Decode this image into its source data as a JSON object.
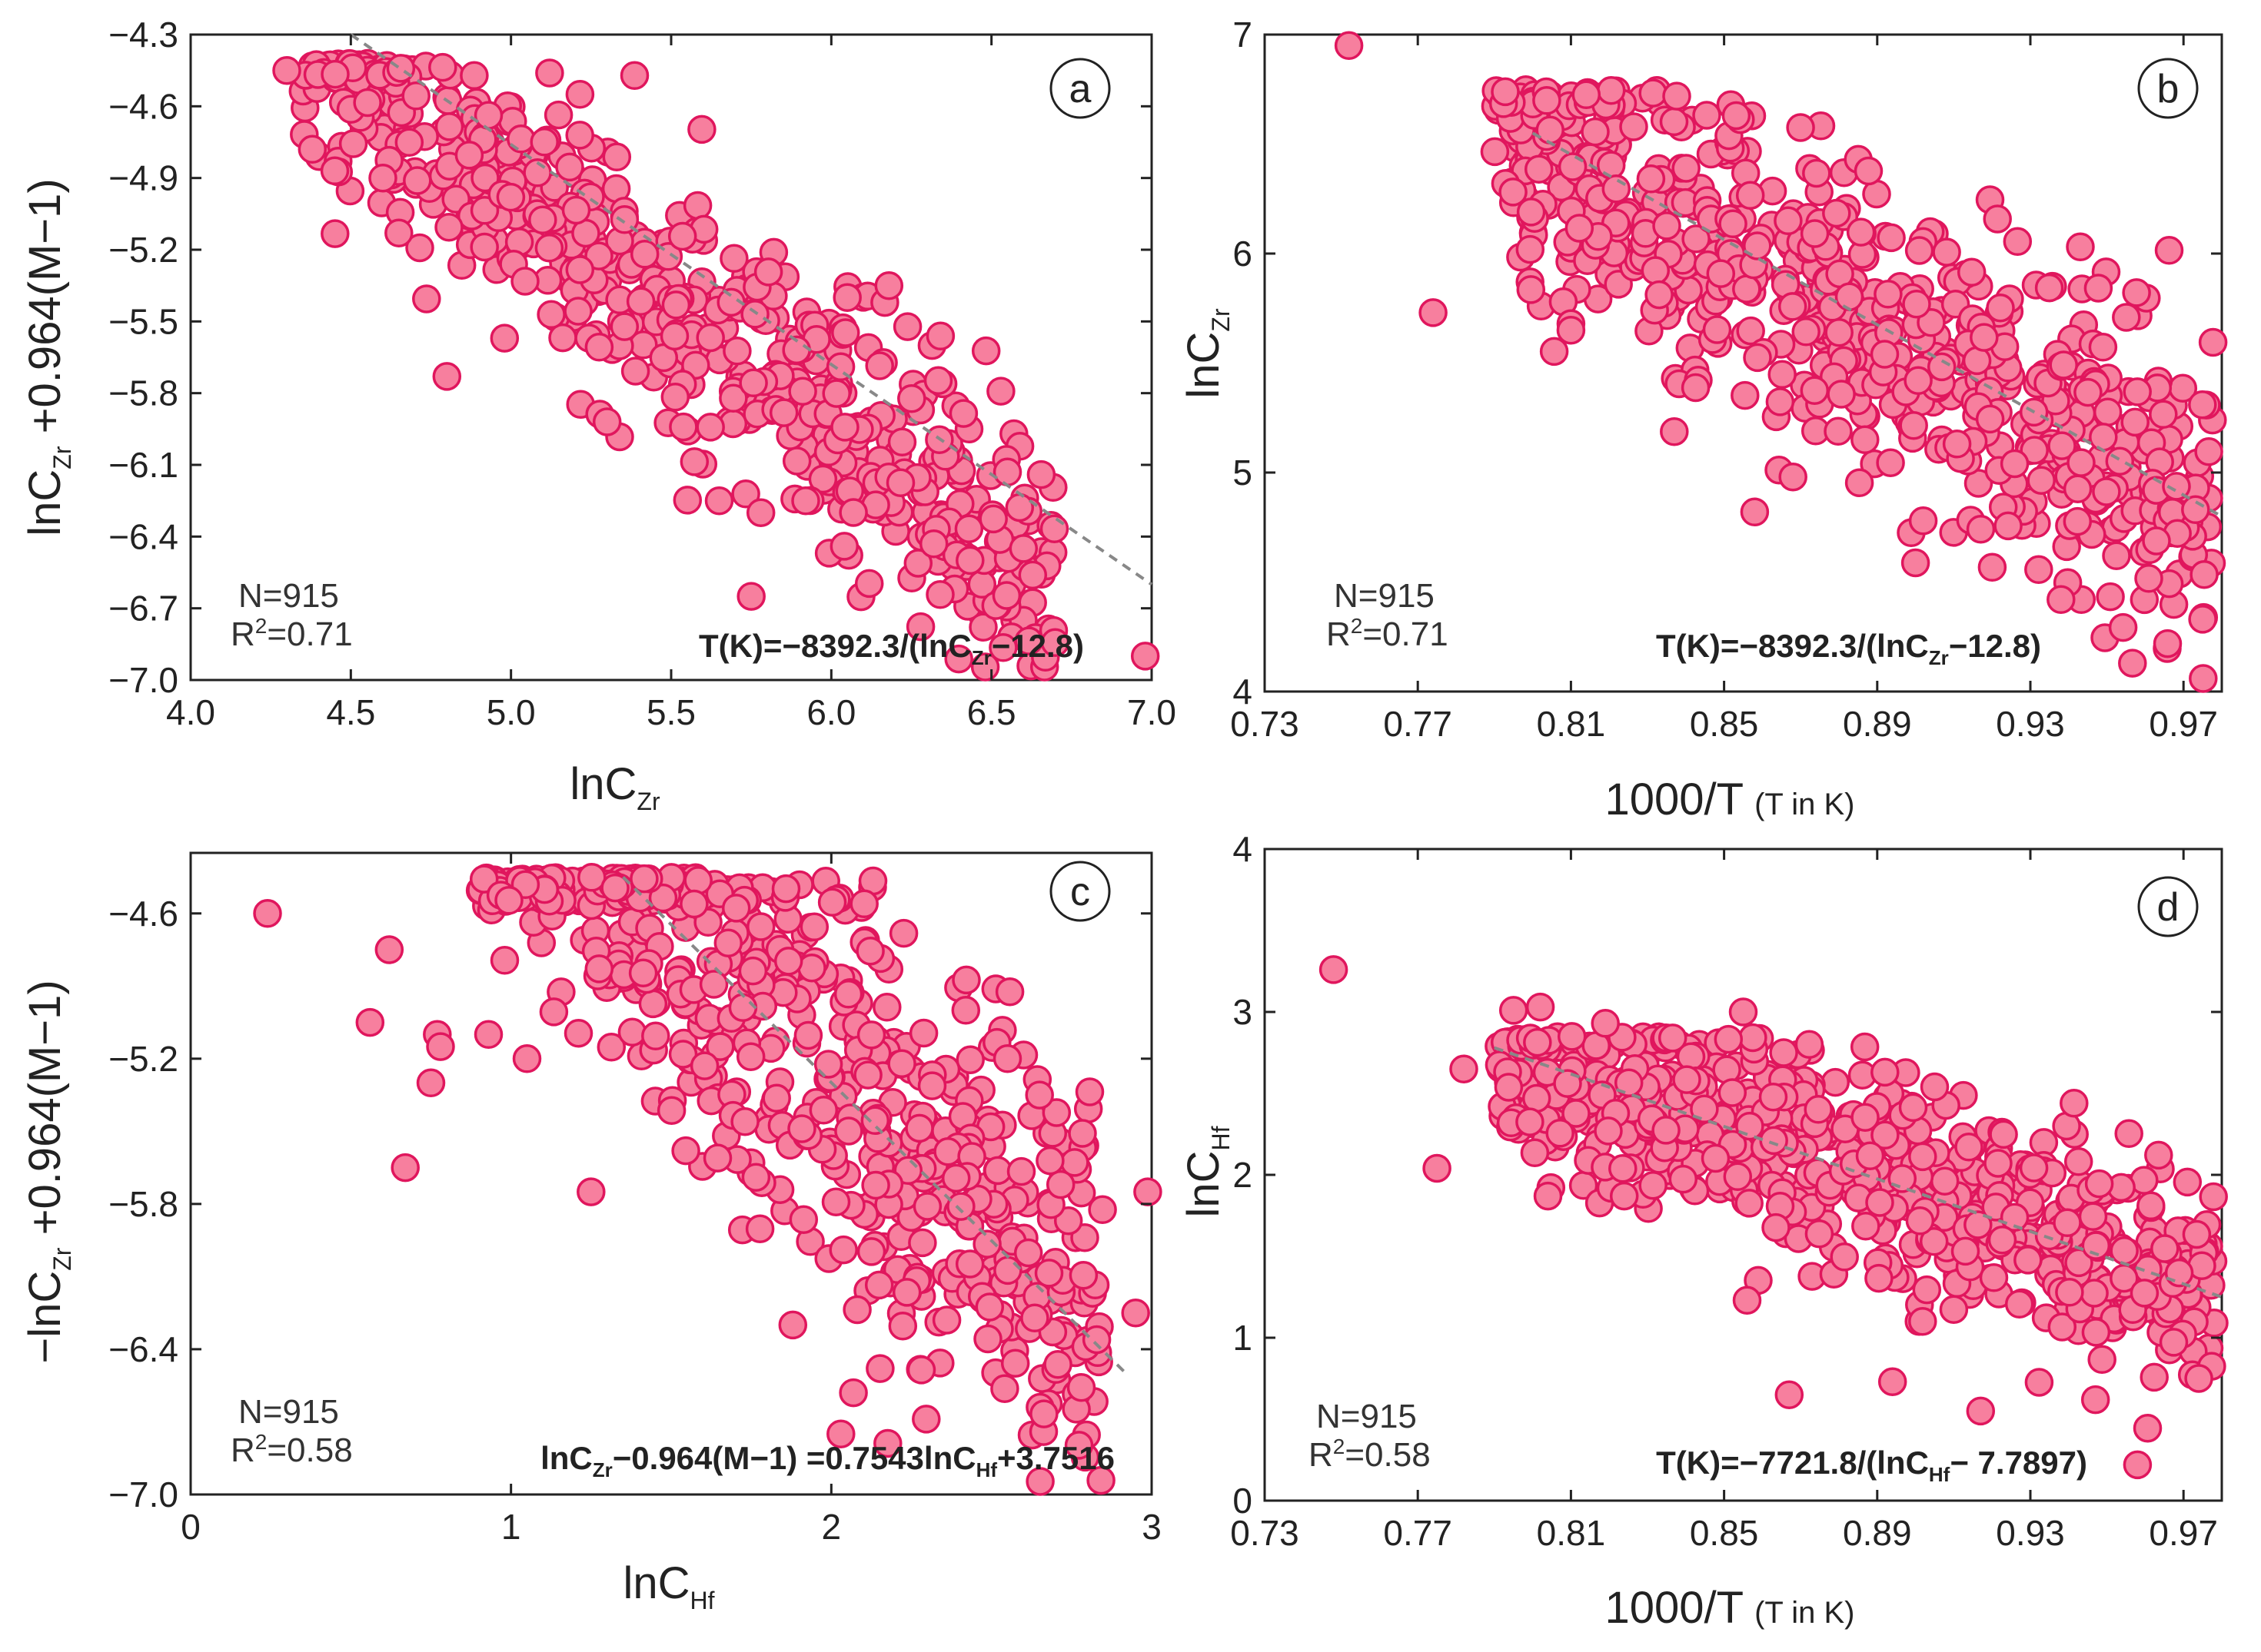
{
  "chart_data": [
    {
      "panel": "a",
      "type": "scatter",
      "xlabel": "lnC",
      "xlabel_sub": "Zr",
      "xlabel_note": "",
      "ylabel_prefix": "lnC",
      "ylabel_sub": "Zr",
      "ylabel_suffix": " +0.964(M−1)",
      "xlim": [
        4.0,
        7.0
      ],
      "ylim": [
        -7.0,
        -4.3
      ],
      "xticks": [
        4.0,
        4.5,
        5.0,
        5.5,
        6.0,
        6.5,
        7.0
      ],
      "xtick_labels": [
        "4.0",
        "4.5",
        "5.0",
        "5.5",
        "6.0",
        "6.5",
        "7.0"
      ],
      "yticks": [
        -7.0,
        -6.7,
        -6.4,
        -6.1,
        -5.8,
        -5.5,
        -5.2,
        -4.9,
        -4.6,
        -4.3
      ],
      "ytick_labels": [
        "−7.0",
        "−6.7",
        "−6.4",
        "−6.1",
        "−5.8",
        "−5.5",
        "−5.2",
        "−4.9",
        "−4.6",
        "−4.3"
      ],
      "n_label": "N=915",
      "r2_label": "R",
      "r2_value": "=0.71",
      "formula_pre": "T(K)=−8392.3/(lnC",
      "formula_sub": "Zr",
      "formula_post": "−12.8)",
      "fit_line": [
        [
          4.5,
          -4.3
        ],
        [
          7.0,
          -6.6
        ]
      ],
      "cluster": {
        "x_min": 4.35,
        "x_max": 6.7,
        "count": 600,
        "intercept": -0.2,
        "slope": -0.95,
        "spread": 0.28,
        "y_cap": -4.42,
        "seed": 11
      },
      "outliers": [
        [
          4.3,
          -4.45
        ],
        [
          4.38,
          -4.78
        ],
        [
          4.45,
          -4.87
        ],
        [
          4.6,
          -4.9
        ],
        [
          4.65,
          -5.13
        ],
        [
          4.8,
          -5.73
        ],
        [
          4.98,
          -5.57
        ],
        [
          5.75,
          -6.65
        ],
        [
          6.98,
          -6.9
        ],
        [
          6.6,
          -6.45
        ],
        [
          6.55,
          -6.13
        ],
        [
          6.32,
          -6.43
        ],
        [
          5.65,
          -6.25
        ],
        [
          5.78,
          -6.3
        ],
        [
          5.92,
          -6.25
        ],
        [
          6.05,
          -5.4
        ],
        [
          6.18,
          -5.35
        ],
        [
          5.3,
          -5.92
        ]
      ]
    },
    {
      "panel": "b",
      "type": "scatter",
      "xlabel": "1000/T",
      "xlabel_sub": "",
      "xlabel_note": "(T in K)",
      "ylabel_prefix": "lnC",
      "ylabel_sub": "Zr",
      "ylabel_suffix": "",
      "xlim": [
        0.73,
        0.98
      ],
      "ylim": [
        4,
        7
      ],
      "xticks": [
        0.73,
        0.77,
        0.81,
        0.85,
        0.89,
        0.93,
        0.97
      ],
      "xtick_labels": [
        "0.73",
        "0.77",
        "0.81",
        "0.85",
        "0.89",
        "0.93",
        "0.97"
      ],
      "yticks": [
        4,
        5,
        6,
        7
      ],
      "ytick_labels": [
        "4",
        "5",
        "6",
        "7"
      ],
      "n_label": "N=915",
      "r2_label": "R",
      "r2_value": "=0.71",
      "formula_pre": "T(K)=−8392.3/(lnC",
      "formula_sub": "Zr",
      "formula_post": "−12.8)",
      "fit_line": [
        [
          0.8,
          6.55
        ],
        [
          0.98,
          4.8
        ]
      ],
      "cluster": {
        "x_min": 0.79,
        "x_max": 0.978,
        "count": 680,
        "intercept": 14.28,
        "slope": -9.67,
        "spread": 0.34,
        "y_cap": 6.75,
        "seed": 23
      },
      "outliers": [
        [
          0.752,
          6.95
        ],
        [
          0.774,
          5.73
        ],
        [
          0.808,
          5.78
        ],
        [
          0.81,
          5.68
        ],
        [
          0.81,
          5.65
        ],
        [
          0.858,
          4.82
        ],
        [
          0.868,
          4.98
        ],
        [
          0.938,
          4.42
        ],
        [
          0.975,
          4.33
        ],
        [
          0.902,
          4.78
        ]
      ]
    },
    {
      "panel": "c",
      "type": "scatter",
      "xlabel": "lnC",
      "xlabel_sub": "Hf",
      "xlabel_note": "",
      "ylabel_prefix": "−lnC",
      "ylabel_sub": "Zr",
      "ylabel_suffix": " +0.964(M−1)",
      "xlim": [
        0,
        3
      ],
      "ylim": [
        -7.0,
        -4.35
      ],
      "xticks": [
        0,
        1,
        2,
        3
      ],
      "xtick_labels": [
        "0",
        "1",
        "2",
        "3"
      ],
      "yticks": [
        -7.0,
        -6.4,
        -5.8,
        -5.2,
        -4.6
      ],
      "ytick_labels": [
        "−7.0",
        "−6.4",
        "−5.8",
        "−5.2",
        "−4.6"
      ],
      "n_label": "N=915",
      "r2_label": "R",
      "r2_value": "=0.58",
      "formula_pre": "lnC",
      "formula_sub": "Zr",
      "formula_post": "−0.964(M−1) =0.7543lnC",
      "formula_sub2": "Hf",
      "formula_post2": "+3.7516",
      "fit_line": [
        [
          1.35,
          -4.45
        ],
        [
          2.92,
          -6.5
        ]
      ],
      "cluster": {
        "x_min": 0.9,
        "x_max": 2.85,
        "count": 650,
        "intercept": -2.7,
        "slope": -1.28,
        "spread": 0.42,
        "y_cap": -4.45,
        "seed": 37
      },
      "outliers": [
        [
          0.24,
          -4.6
        ],
        [
          0.56,
          -5.05
        ],
        [
          0.62,
          -4.75
        ],
        [
          0.67,
          -5.65
        ],
        [
          0.75,
          -5.3
        ],
        [
          0.77,
          -5.1
        ],
        [
          0.78,
          -5.15
        ],
        [
          0.93,
          -5.1
        ],
        [
          1.05,
          -5.2
        ],
        [
          1.25,
          -5.75
        ],
        [
          2.03,
          -6.75
        ],
        [
          2.95,
          -6.25
        ],
        [
          3.0,
          -5.75
        ],
        [
          2.42,
          -5.0
        ],
        [
          2.55,
          -5.2
        ],
        [
          2.65,
          -5.35
        ],
        [
          1.88,
          -6.3
        ]
      ]
    },
    {
      "panel": "d",
      "type": "scatter",
      "xlabel": "1000/T",
      "xlabel_sub": "",
      "xlabel_note": "(T in K)",
      "ylabel_prefix": "lnC",
      "ylabel_sub": "Hf",
      "ylabel_suffix": "",
      "xlim": [
        0.73,
        0.98
      ],
      "ylim": [
        0,
        4
      ],
      "xticks": [
        0.73,
        0.77,
        0.81,
        0.85,
        0.89,
        0.93,
        0.97
      ],
      "xtick_labels": [
        "0.73",
        "0.77",
        "0.81",
        "0.85",
        "0.89",
        "0.93",
        "0.97"
      ],
      "yticks": [
        0,
        1,
        2,
        3,
        4
      ],
      "ytick_labels": [
        "0",
        "1",
        "2",
        "3",
        "4"
      ],
      "n_label": "N=915",
      "r2_label": "R",
      "r2_value": "=0.58",
      "formula_pre": "T(K)=−7721.8/(lnC",
      "formula_sub": "Hf",
      "formula_post": "− 7.7897)",
      "fit_line": [
        [
          0.79,
          2.78
        ],
        [
          0.98,
          1.25
        ]
      ],
      "cluster": {
        "x_min": 0.79,
        "x_max": 0.978,
        "count": 680,
        "intercept": 9.14,
        "slope": -8.05,
        "spread": 0.32,
        "y_cap": 2.85,
        "seed": 53
      },
      "outliers": [
        [
          0.748,
          3.26
        ],
        [
          0.775,
          2.04
        ],
        [
          0.782,
          2.65
        ],
        [
          0.795,
          3.01
        ],
        [
          0.802,
          3.03
        ],
        [
          0.804,
          1.87
        ],
        [
          0.819,
          2.93
        ],
        [
          0.855,
          3.0
        ],
        [
          0.856,
          1.23
        ],
        [
          0.867,
          0.65
        ],
        [
          0.894,
          0.73
        ],
        [
          0.905,
          2.54
        ],
        [
          0.917,
          0.55
        ],
        [
          0.947,
          0.62
        ],
        [
          0.958,
          0.22
        ],
        [
          0.974,
          0.75
        ],
        [
          0.892,
          2.63
        ]
      ]
    }
  ]
}
